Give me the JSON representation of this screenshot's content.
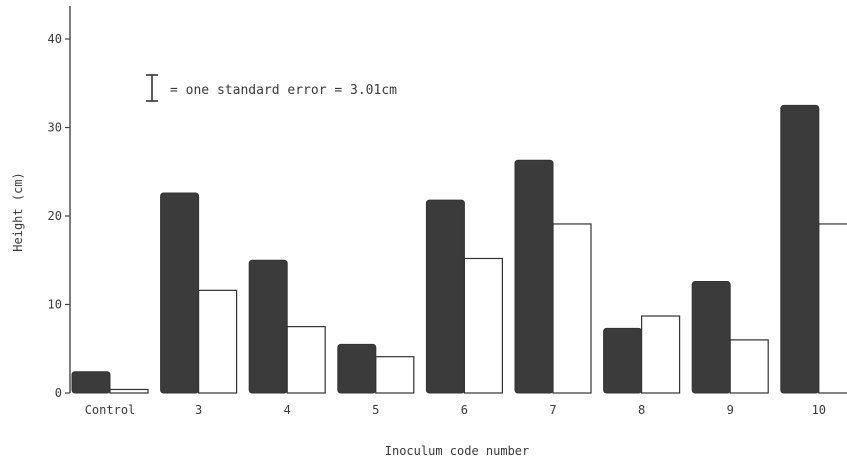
{
  "chart_data": {
    "type": "bar",
    "ylabel": "Height (cm)",
    "xlabel": "Inoculum code number",
    "categories": [
      "Control",
      "3",
      "4",
      "5",
      "6",
      "7",
      "8",
      "9",
      "10"
    ],
    "series": [
      {
        "fill": "#3b3b3b",
        "values": [
          2.4,
          22.6,
          15.0,
          5.5,
          21.8,
          26.3,
          7.3,
          12.6,
          32.5
        ]
      },
      {
        "fill": "#ffffff",
        "values": [
          0.4,
          11.6,
          7.5,
          4.1,
          15.2,
          19.1,
          8.7,
          6.0,
          19.1
        ]
      }
    ],
    "yticks": [
      0,
      10,
      20,
      30,
      40
    ],
    "ylim": [
      0,
      44
    ],
    "legend_text": "= one standard error = 3.01cm",
    "standard_error": 3.01
  }
}
